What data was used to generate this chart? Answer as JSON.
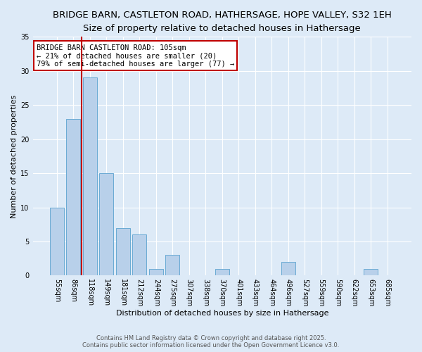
{
  "title": "BRIDGE BARN, CASTLETON ROAD, HATHERSAGE, HOPE VALLEY, S32 1EH",
  "subtitle": "Size of property relative to detached houses in Hathersage",
  "xlabel": "Distribution of detached houses by size in Hathersage",
  "ylabel": "Number of detached properties",
  "bar_labels": [
    "55sqm",
    "86sqm",
    "118sqm",
    "149sqm",
    "181sqm",
    "212sqm",
    "244sqm",
    "275sqm",
    "307sqm",
    "338sqm",
    "370sqm",
    "401sqm",
    "433sqm",
    "464sqm",
    "496sqm",
    "527sqm",
    "559sqm",
    "590sqm",
    "622sqm",
    "653sqm",
    "685sqm"
  ],
  "bar_values": [
    10,
    23,
    29,
    15,
    7,
    6,
    1,
    3,
    0,
    0,
    1,
    0,
    0,
    0,
    2,
    0,
    0,
    0,
    0,
    1,
    0
  ],
  "bar_color": "#b8d0ea",
  "bar_edge_color": "#6aaad4",
  "ylim": [
    0,
    35
  ],
  "yticks": [
    0,
    5,
    10,
    15,
    20,
    25,
    30,
    35
  ],
  "vline_color": "#c00000",
  "annotation_text": "BRIDGE BARN CASTLETON ROAD: 105sqm\n← 21% of detached houses are smaller (20)\n79% of semi-detached houses are larger (77) →",
  "annotation_box_color": "#ffffff",
  "annotation_box_edge_color": "#c00000",
  "footer_line1": "Contains HM Land Registry data © Crown copyright and database right 2025.",
  "footer_line2": "Contains public sector information licensed under the Open Government Licence v3.0.",
  "bg_color": "#ddeaf7",
  "plot_bg_color": "#ddeaf7",
  "grid_color": "#ffffff",
  "title_fontsize": 9.5,
  "subtitle_fontsize": 8.5,
  "axis_label_fontsize": 8,
  "tick_fontsize": 7,
  "footer_fontsize": 6,
  "annotation_fontsize": 7.5
}
